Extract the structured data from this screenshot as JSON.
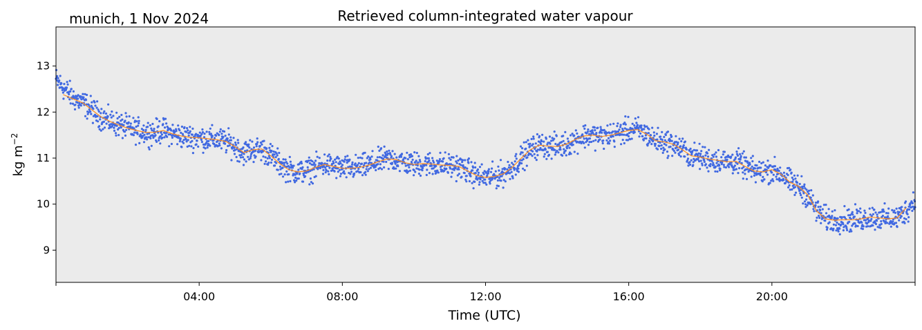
{
  "chart_data": {
    "type": "scatter",
    "title": "Retrieved column-integrated water vapour",
    "subtitle": "munich, 1 Nov 2024",
    "xlabel": "Time (UTC)",
    "ylabel": "kg m",
    "ylabel_superscript": "−2",
    "xlim_hours": [
      0,
      24
    ],
    "ylim": [
      8.3,
      13.85
    ],
    "x_ticks": [
      {
        "hour": 4,
        "label": "04:00"
      },
      {
        "hour": 8,
        "label": "08:00"
      },
      {
        "hour": 12,
        "label": "12:00"
      },
      {
        "hour": 16,
        "label": "16:00"
      },
      {
        "hour": 20,
        "label": "20:00"
      }
    ],
    "y_ticks": [
      9,
      10,
      11,
      12,
      13
    ],
    "grid": false,
    "legend": "none",
    "colors": {
      "background": "#ebebeb",
      "points": "#4169e1",
      "smoothed_line": "#ff8c1a"
    },
    "series": [
      {
        "style": "points",
        "x_hours": [
          0.0,
          0.25,
          0.5,
          0.75,
          1.0,
          1.25,
          1.5,
          1.75,
          2.0,
          2.25,
          2.5,
          2.75,
          3.0,
          3.25,
          3.5,
          3.75,
          4.0,
          4.25,
          4.5,
          4.75,
          5.0,
          5.25,
          5.5,
          5.75,
          6.0,
          6.25,
          6.5,
          6.75,
          7.0,
          7.25,
          7.5,
          7.75,
          8.0,
          8.25,
          8.5,
          8.75,
          9.0,
          9.25,
          9.5,
          9.75,
          10.0,
          10.25,
          10.5,
          10.75,
          11.0,
          11.25,
          11.5,
          11.75,
          12.0,
          12.25,
          12.5,
          12.75,
          13.0,
          13.25,
          13.5,
          13.75,
          14.0,
          14.25,
          14.5,
          14.75,
          15.0,
          15.25,
          15.5,
          15.75,
          16.0,
          16.25,
          16.5,
          16.75,
          17.0,
          17.25,
          17.5,
          17.75,
          18.0,
          18.25,
          18.5,
          18.75,
          19.0,
          19.25,
          19.5,
          19.75,
          20.0,
          20.25,
          20.5,
          20.75,
          21.0,
          21.25,
          21.5,
          21.75,
          22.0,
          22.25,
          22.5,
          22.75,
          23.0,
          23.25,
          23.5,
          23.75,
          24.0
        ],
        "y": [
          12.7,
          12.5,
          12.3,
          12.2,
          12.05,
          11.9,
          11.8,
          11.72,
          11.65,
          11.6,
          11.56,
          11.56,
          11.6,
          11.53,
          11.48,
          11.45,
          11.44,
          11.42,
          11.4,
          11.36,
          11.25,
          11.12,
          11.18,
          11.2,
          11.05,
          10.88,
          10.75,
          10.7,
          10.72,
          10.8,
          10.86,
          10.82,
          10.78,
          10.78,
          10.8,
          10.85,
          10.92,
          10.98,
          10.97,
          10.9,
          10.86,
          10.88,
          10.87,
          10.85,
          10.84,
          10.82,
          10.72,
          10.62,
          10.58,
          10.6,
          10.66,
          10.8,
          11.0,
          11.18,
          11.28,
          11.26,
          11.25,
          11.3,
          11.4,
          11.48,
          11.5,
          11.47,
          11.5,
          11.55,
          11.6,
          11.62,
          11.52,
          11.38,
          11.35,
          11.3,
          11.18,
          11.05,
          11.02,
          10.98,
          10.95,
          10.92,
          10.93,
          10.82,
          10.72,
          10.7,
          10.75,
          10.65,
          10.48,
          10.38,
          10.2,
          9.85,
          9.68,
          9.65,
          9.66,
          9.66,
          9.68,
          9.72,
          9.7,
          9.68,
          9.7,
          9.85,
          10.1
        ]
      },
      {
        "style": "line",
        "x_hours": [
          0.2,
          0.5,
          0.75,
          1.0,
          1.25,
          1.5,
          1.75,
          2.0,
          2.25,
          2.5,
          2.75,
          3.0,
          3.25,
          3.5,
          3.75,
          4.0,
          4.25,
          4.5,
          4.75,
          5.0,
          5.25,
          5.5,
          5.75,
          6.0,
          6.25,
          6.5,
          6.75,
          7.0,
          7.25,
          7.5,
          7.75,
          8.0,
          8.25,
          8.5,
          8.75,
          9.0,
          9.25,
          9.5,
          9.75,
          10.0,
          10.25,
          10.5,
          10.75,
          11.0,
          11.25,
          11.5,
          11.75,
          12.0,
          12.25,
          12.5,
          12.75,
          13.0,
          13.25,
          13.5,
          13.75,
          14.0,
          14.25,
          14.5,
          14.75,
          15.0,
          15.25,
          15.5,
          15.75,
          16.0,
          16.25,
          16.5,
          16.75,
          17.0,
          17.25,
          17.5,
          17.75,
          18.0,
          18.25,
          18.5,
          18.75,
          19.0,
          19.25,
          19.5,
          19.75,
          20.0,
          20.25,
          20.5,
          20.75,
          21.0,
          21.25,
          21.5,
          21.75,
          22.0,
          22.25,
          22.5,
          22.75,
          23.0,
          23.25,
          23.5,
          23.75
        ],
        "y": [
          12.38,
          12.28,
          12.2,
          12.05,
          11.9,
          11.8,
          11.72,
          11.65,
          11.6,
          11.56,
          11.56,
          11.6,
          11.53,
          11.48,
          11.45,
          11.44,
          11.42,
          11.4,
          11.36,
          11.25,
          11.12,
          11.18,
          11.2,
          11.05,
          10.88,
          10.75,
          10.7,
          10.72,
          10.8,
          10.86,
          10.82,
          10.78,
          10.78,
          10.8,
          10.85,
          10.92,
          10.98,
          10.97,
          10.9,
          10.86,
          10.88,
          10.87,
          10.85,
          10.84,
          10.82,
          10.72,
          10.62,
          10.58,
          10.6,
          10.66,
          10.8,
          11.0,
          11.18,
          11.28,
          11.26,
          11.25,
          11.3,
          11.4,
          11.48,
          11.5,
          11.47,
          11.5,
          11.55,
          11.6,
          11.62,
          11.52,
          11.38,
          11.35,
          11.3,
          11.18,
          11.05,
          11.02,
          10.98,
          10.95,
          10.92,
          10.93,
          10.82,
          10.72,
          10.7,
          10.75,
          10.65,
          10.48,
          10.38,
          10.2,
          9.85,
          9.68,
          9.65,
          9.66,
          9.66,
          9.68,
          9.72,
          9.7,
          9.68,
          9.7,
          9.92
        ]
      }
    ]
  }
}
